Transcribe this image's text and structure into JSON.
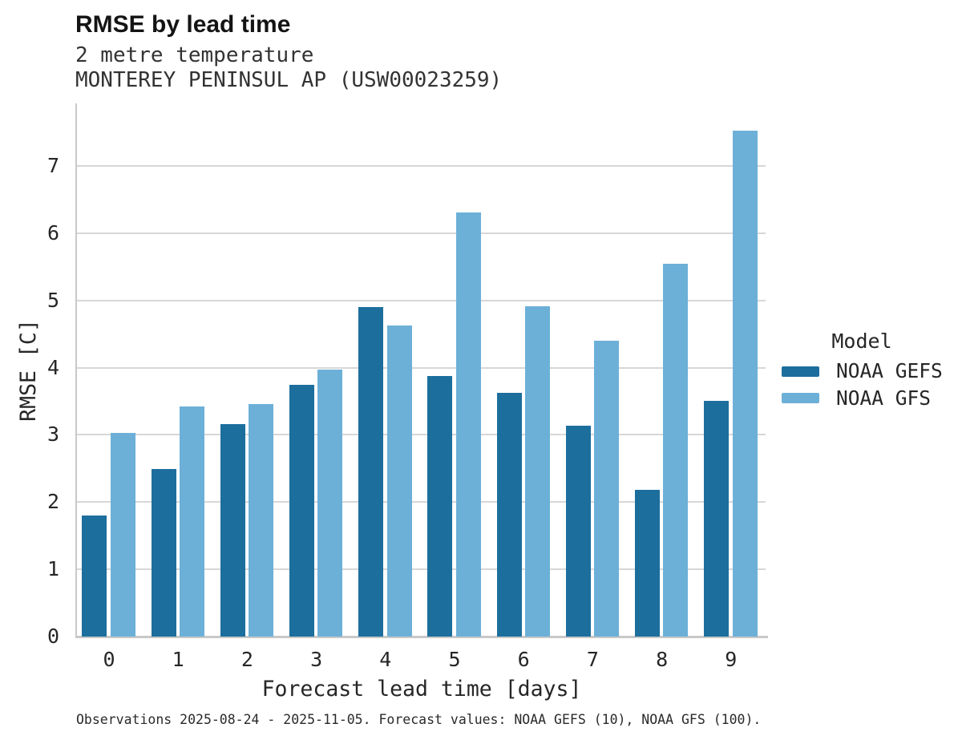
{
  "chart_data": {
    "type": "bar",
    "title": "RMSE by lead time",
    "subtitle": [
      "2 metre temperature",
      "MONTEREY PENINSUL AP (USW00023259)"
    ],
    "xlabel": "Forecast lead time [days]",
    "ylabel": "RMSE [C]",
    "categories": [
      "0",
      "1",
      "2",
      "3",
      "4",
      "5",
      "6",
      "7",
      "8",
      "9"
    ],
    "series": [
      {
        "name": "NOAA GEFS",
        "color": "#1c6e9d",
        "values": [
          1.8,
          2.49,
          3.16,
          3.74,
          4.9,
          3.87,
          3.62,
          3.14,
          2.18,
          3.51
        ]
      },
      {
        "name": "NOAA GFS",
        "color": "#6cb0d8",
        "values": [
          3.03,
          3.42,
          3.46,
          3.97,
          4.63,
          6.31,
          4.91,
          4.4,
          5.54,
          7.52
        ]
      }
    ],
    "ylim": [
      0,
      7.93
    ],
    "yticks": [
      0,
      1,
      2,
      3,
      4,
      5,
      6,
      7
    ],
    "grid": true,
    "grid_axis": "y",
    "legend": {
      "title": "Model",
      "position": "right-center"
    },
    "caption": "Observations 2025-08-24 - 2025-11-05. Forecast values: NOAA GEFS (10), NOAA GFS (100)."
  },
  "style": {
    "bar_dark": "#1c6e9d",
    "bar_light": "#6cb0d8",
    "grid_color": "#d7d7d7",
    "axis_color": "#c8c8c8",
    "text_color": "#262626",
    "background": "#ffffff"
  }
}
